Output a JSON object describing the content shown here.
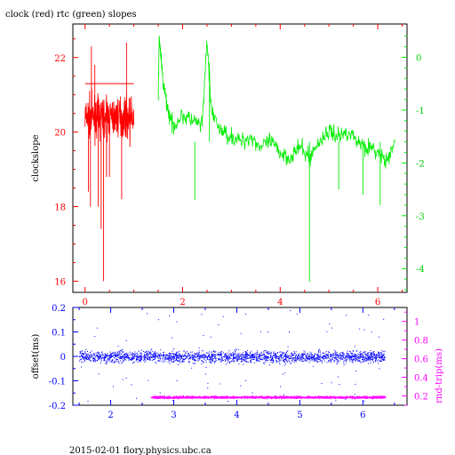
{
  "title": "clock (red) rtc (green) slopes",
  "footer": "2015-02-01 flory.physics.ubc.ca",
  "colors": {
    "red": "#ff0000",
    "green": "#00ee00",
    "blue": "#0000ff",
    "magenta": "#ff00ff",
    "black": "#000000"
  },
  "chart_data": [
    {
      "type": "line",
      "title": "clock (red) rtc (green) slopes",
      "ylabel": "clockslope",
      "xlim": [
        -0.25,
        6.6
      ],
      "ylim_left": [
        15.7,
        22.9
      ],
      "ylim_right": [
        -4.45,
        0.63
      ],
      "x_ticks": [
        "0",
        "2",
        "4",
        "6"
      ],
      "y_ticks_left": [
        "16",
        "18",
        "20",
        "22"
      ],
      "y_ticks_right": [
        "0",
        "-1",
        "-2",
        "-3",
        "-4"
      ],
      "series": [
        {
          "name": "clock",
          "axis": "left",
          "color": "#ff0000",
          "x_range": [
            0,
            1.0
          ],
          "baseline": 20.4,
          "reference_line": 21.3,
          "spikes": [
            [
              0.07,
              18.4
            ],
            [
              0.11,
              18.0
            ],
            [
              0.13,
              22.3
            ],
            [
              0.2,
              21.8
            ],
            [
              0.27,
              18.0
            ],
            [
              0.33,
              17.4
            ],
            [
              0.38,
              16.0
            ],
            [
              0.44,
              18.8
            ],
            [
              0.5,
              18.8
            ],
            [
              0.75,
              18.2
            ],
            [
              0.85,
              22.4
            ],
            [
              0.92,
              19.6
            ]
          ]
        },
        {
          "name": "rtc",
          "axis": "right",
          "color": "#00ee00",
          "points": [
            [
              1.5,
              -0.8
            ],
            [
              1.52,
              0.4
            ],
            [
              1.6,
              -0.5
            ],
            [
              1.7,
              -1.0
            ],
            [
              1.8,
              -1.3
            ],
            [
              2.0,
              -1.1
            ],
            [
              2.2,
              -1.2
            ],
            [
              2.4,
              -1.3
            ],
            [
              2.5,
              0.3
            ],
            [
              2.6,
              -1.1
            ],
            [
              2.8,
              -1.4
            ],
            [
              3.0,
              -1.5
            ],
            [
              3.2,
              -1.6
            ],
            [
              3.4,
              -1.5
            ],
            [
              3.6,
              -1.7
            ],
            [
              3.8,
              -1.6
            ],
            [
              4.0,
              -1.8
            ],
            [
              4.2,
              -1.9
            ],
            [
              4.4,
              -1.7
            ],
            [
              4.6,
              -1.9
            ],
            [
              4.8,
              -1.6
            ],
            [
              5.0,
              -1.4
            ],
            [
              5.2,
              -1.5
            ],
            [
              5.4,
              -1.4
            ],
            [
              5.6,
              -1.6
            ],
            [
              5.8,
              -1.7
            ],
            [
              6.0,
              -1.8
            ],
            [
              6.2,
              -2.0
            ],
            [
              6.35,
              -1.6
            ]
          ],
          "spikes": [
            [
              2.25,
              -2.7
            ],
            [
              2.55,
              -0.1
            ],
            [
              4.6,
              -4.25
            ],
            [
              5.2,
              -2.5
            ],
            [
              5.7,
              -2.6
            ],
            [
              6.05,
              -2.8
            ]
          ]
        }
      ]
    },
    {
      "type": "scatter",
      "ylabel_left": "offset(ms)",
      "ylabel_right": "rnd-trip(ms)",
      "xlim": [
        1.4,
        6.7
      ],
      "ylim_left": [
        -0.2,
        0.2
      ],
      "ylim_right": [
        0.1,
        1.15
      ],
      "x_ticks": [
        "2",
        "3",
        "4",
        "5",
        "6"
      ],
      "y_ticks_left": [
        "0.2",
        "0.1",
        "0",
        "-0.1",
        "-0.2"
      ],
      "y_ticks_right": [
        "0.2",
        "0.4",
        "0.6",
        "0.8",
        "1"
      ],
      "series": [
        {
          "name": "offset",
          "axis": "left",
          "color": "#0000ff",
          "x_range": [
            1.5,
            6.35
          ],
          "center": 0.0,
          "spread": 0.025
        },
        {
          "name": "rnd-trip",
          "axis": "right",
          "color": "#ff00ff",
          "x_range": [
            2.63,
            6.35
          ],
          "center": 0.19,
          "spread": 0.01
        }
      ]
    }
  ]
}
